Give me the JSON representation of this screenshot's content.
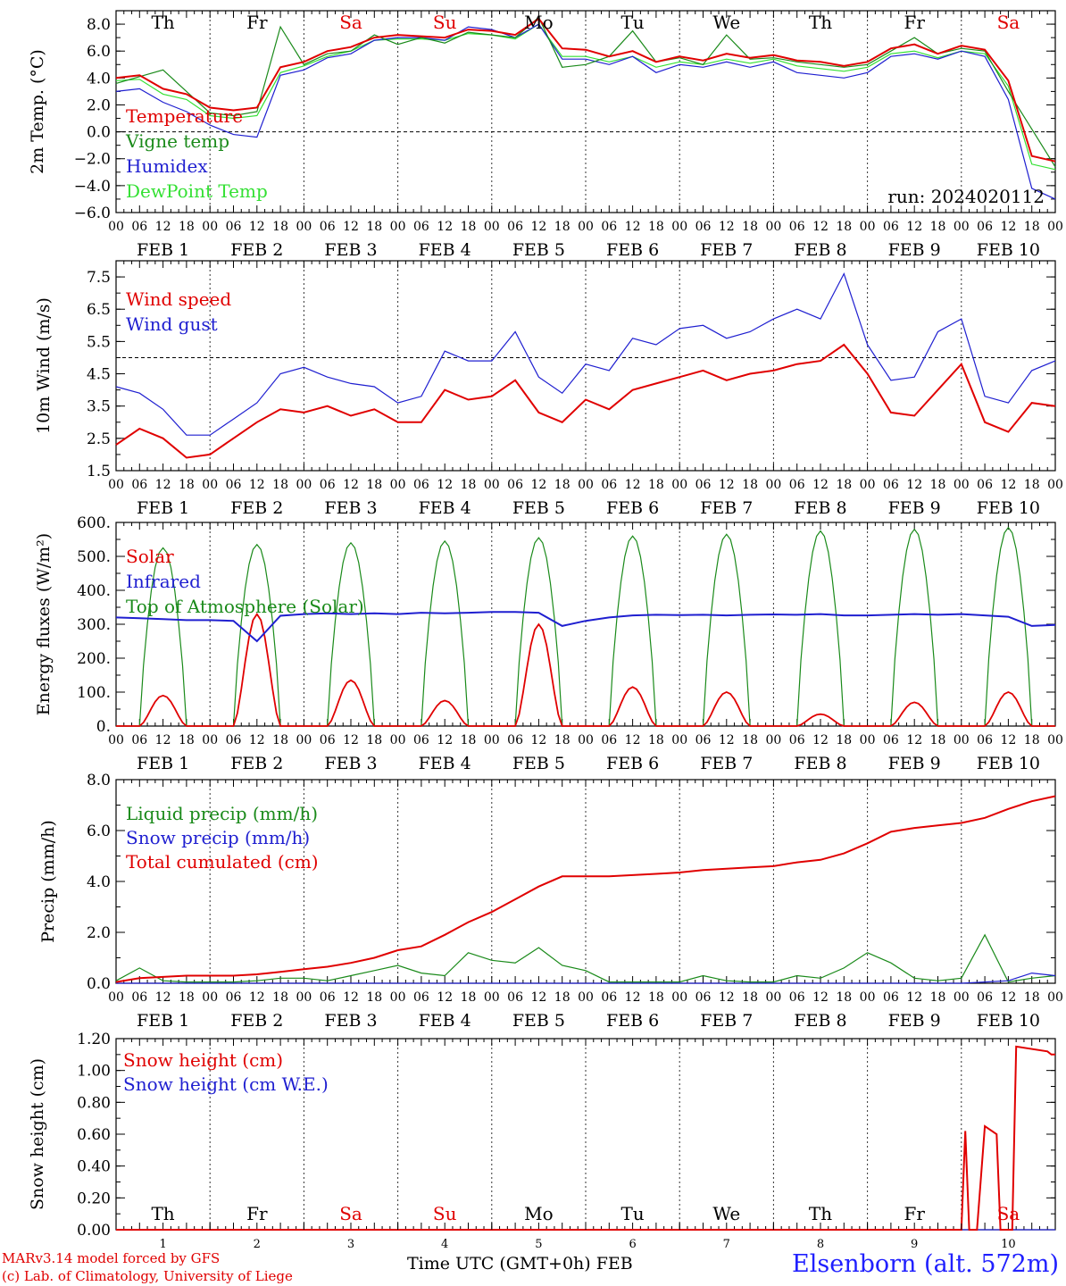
{
  "chart_data": [
    {
      "type": "line",
      "id": "temp",
      "ylabel": "2m Temp. (°C)",
      "ylim": [
        -6,
        9
      ],
      "yticks": [
        "−6.0",
        "−4.0",
        "−2.0",
        "0.0",
        "2.0",
        "4.0",
        "6.0",
        "8.0"
      ],
      "ytick_values": [
        -6,
        -4,
        -2,
        0,
        2,
        4,
        6,
        8
      ],
      "ref_line": 0,
      "run": "run: 2024020112",
      "x_hours": [
        0,
        6,
        12,
        18,
        24,
        30,
        36,
        42,
        48,
        54,
        60,
        66,
        72,
        78,
        84,
        90,
        96,
        102,
        108,
        114,
        120,
        126,
        132,
        138,
        144,
        150,
        156,
        162,
        168,
        174,
        180,
        186,
        192,
        198,
        204,
        210,
        216,
        222,
        228,
        234,
        240
      ],
      "series": [
        {
          "name": "Temperature",
          "color": "#e00000",
          "values": [
            4.0,
            4.2,
            3.2,
            2.8,
            1.8,
            1.6,
            1.8,
            4.8,
            5.2,
            6.0,
            6.3,
            7.0,
            7.2,
            7.1,
            7.0,
            7.6,
            7.5,
            7.2,
            8.4,
            6.2,
            6.1,
            5.6,
            6.0,
            5.2,
            5.6,
            5.3,
            5.8,
            5.5,
            5.7,
            5.3,
            5.2,
            4.9,
            5.2,
            6.2,
            6.5,
            5.8,
            6.4,
            6.1,
            3.8,
            -1.8,
            -2.2
          ]
        },
        {
          "name": "Vigne temp",
          "color": "#1a8a1a",
          "values": [
            3.6,
            4.1,
            4.6,
            3.0,
            1.4,
            1.2,
            1.5,
            7.8,
            5.0,
            5.8,
            6.0,
            7.2,
            6.5,
            7.0,
            6.6,
            7.4,
            7.2,
            7.0,
            8.5,
            4.8,
            5.0,
            5.6,
            7.5,
            5.2,
            5.5,
            5.0,
            7.2,
            5.4,
            5.5,
            5.2,
            5.0,
            4.8,
            5.0,
            6.0,
            7.0,
            5.8,
            6.2,
            6.0,
            3.0,
            0.2,
            -2.6
          ]
        },
        {
          "name": "Humidex",
          "color": "#1f1fd0",
          "values": [
            3.0,
            3.2,
            2.2,
            1.5,
            0.5,
            -0.2,
            -0.4,
            4.2,
            4.6,
            5.5,
            5.8,
            6.8,
            7.0,
            7.0,
            6.8,
            7.8,
            7.6,
            7.0,
            8.0,
            5.4,
            5.4,
            5.0,
            5.6,
            4.4,
            5.0,
            4.8,
            5.2,
            4.8,
            5.2,
            4.4,
            4.2,
            4.0,
            4.4,
            5.6,
            5.8,
            5.4,
            6.0,
            5.6,
            2.4,
            -4.2,
            -5.0
          ]
        },
        {
          "name": "DewPoint Temp",
          "color": "#33e033",
          "values": [
            3.8,
            3.9,
            2.8,
            2.4,
            1.2,
            1.0,
            1.2,
            4.4,
            4.9,
            5.6,
            6.0,
            6.8,
            6.9,
            6.9,
            6.8,
            7.3,
            7.2,
            6.9,
            8.0,
            5.6,
            5.6,
            5.2,
            5.6,
            4.8,
            5.2,
            5.0,
            5.4,
            5.1,
            5.4,
            4.9,
            4.7,
            4.5,
            4.8,
            5.8,
            6.0,
            5.5,
            6.0,
            5.8,
            3.4,
            -2.4,
            -2.8
          ]
        }
      ]
    },
    {
      "type": "line",
      "id": "wind",
      "ylabel": "10m Wind (m/s)",
      "ylim": [
        1.5,
        8.0
      ],
      "yticks": [
        "1.5",
        "2.5",
        "3.5",
        "4.5",
        "5.5",
        "6.5",
        "7.5"
      ],
      "ytick_values": [
        1.5,
        2.5,
        3.5,
        4.5,
        5.5,
        6.5,
        7.5
      ],
      "ref_line": 5.0,
      "x_hours": [
        0,
        6,
        12,
        18,
        24,
        30,
        36,
        42,
        48,
        54,
        60,
        66,
        72,
        78,
        84,
        90,
        96,
        102,
        108,
        114,
        120,
        126,
        132,
        138,
        144,
        150,
        156,
        162,
        168,
        174,
        180,
        186,
        192,
        198,
        204,
        210,
        216,
        222,
        228,
        234,
        240
      ],
      "series": [
        {
          "name": "Wind speed",
          "color": "#e00000",
          "values": [
            2.3,
            2.8,
            2.5,
            1.9,
            2.0,
            2.5,
            3.0,
            3.4,
            3.3,
            3.5,
            3.2,
            3.4,
            3.0,
            3.0,
            4.0,
            3.7,
            3.8,
            4.3,
            3.3,
            3.0,
            3.7,
            3.4,
            4.0,
            4.2,
            4.4,
            4.6,
            4.3,
            4.5,
            4.6,
            4.8,
            4.9,
            5.4,
            4.5,
            3.3,
            3.2,
            4.0,
            4.8,
            3.0,
            2.7,
            3.6,
            3.5
          ]
        },
        {
          "name": "Wind gust",
          "color": "#1f1fd0",
          "values": [
            4.1,
            3.9,
            3.4,
            2.6,
            2.6,
            3.1,
            3.6,
            4.5,
            4.7,
            4.4,
            4.2,
            4.1,
            3.6,
            3.8,
            5.2,
            4.9,
            4.9,
            5.8,
            4.4,
            3.9,
            4.8,
            4.6,
            5.6,
            5.4,
            5.9,
            6.0,
            5.6,
            5.8,
            6.2,
            6.5,
            6.2,
            7.6,
            5.4,
            4.3,
            4.4,
            5.8,
            6.2,
            3.8,
            3.6,
            4.6,
            4.9
          ]
        }
      ]
    },
    {
      "type": "line",
      "id": "energy",
      "ylabel": "Energy fluxes (W/m²)",
      "ylim": [
        0,
        600
      ],
      "yticks": [
        "0.",
        "100.",
        "200.",
        "300.",
        "400.",
        "500.",
        "600."
      ],
      "ytick_values": [
        0,
        100,
        200,
        300,
        400,
        500,
        600
      ],
      "x_hours": [
        0,
        6,
        12,
        18,
        24,
        30,
        36,
        42,
        48,
        54,
        60,
        66,
        72,
        78,
        84,
        90,
        96,
        102,
        108,
        114,
        120,
        126,
        132,
        138,
        144,
        150,
        156,
        162,
        168,
        174,
        180,
        186,
        192,
        198,
        204,
        210,
        216,
        222,
        228,
        234,
        240
      ],
      "solar_peaks": [
        90,
        330,
        135,
        75,
        300,
        115,
        100,
        35,
        70,
        100
      ],
      "toa_peaks": [
        525,
        535,
        540,
        545,
        555,
        560,
        565,
        575,
        580,
        585
      ],
      "series": [
        {
          "name": "Solar",
          "color": "#e00000"
        },
        {
          "name": "Infrared",
          "color": "#1f1fd0",
          "values": [
            320,
            318,
            315,
            312,
            312,
            310,
            250,
            325,
            330,
            332,
            330,
            332,
            330,
            334,
            332,
            334,
            336,
            336,
            334,
            295,
            310,
            320,
            326,
            328,
            327,
            328,
            326,
            328,
            329,
            328,
            330,
            326,
            326,
            328,
            330,
            328,
            330,
            326,
            322,
            295,
            298
          ]
        },
        {
          "name": "Top of Atmosphere (Solar)",
          "color": "#1a8a1a"
        }
      ]
    },
    {
      "type": "line",
      "id": "precip",
      "ylabel": "Precip (mm/h)",
      "ylim": [
        0,
        8
      ],
      "yticks": [
        "0.0",
        "2.0",
        "4.0",
        "6.0",
        "8.0"
      ],
      "ytick_values": [
        0,
        2,
        4,
        6,
        8
      ],
      "x_hours": [
        0,
        6,
        12,
        18,
        24,
        30,
        36,
        42,
        48,
        54,
        60,
        66,
        72,
        78,
        84,
        90,
        96,
        102,
        108,
        114,
        120,
        126,
        132,
        138,
        144,
        150,
        156,
        162,
        168,
        174,
        180,
        186,
        192,
        198,
        204,
        210,
        216,
        222,
        228,
        234,
        240
      ],
      "series": [
        {
          "name": "Liquid precip (mm/h)",
          "color": "#1a8a1a",
          "values": [
            0.1,
            0.6,
            0.1,
            0.05,
            0.05,
            0.05,
            0.1,
            0.2,
            0.2,
            0.1,
            0.3,
            0.5,
            0.7,
            0.4,
            0.3,
            1.2,
            0.9,
            0.8,
            1.4,
            0.7,
            0.5,
            0.05,
            0.05,
            0.05,
            0.05,
            0.3,
            0.1,
            0.05,
            0.05,
            0.3,
            0.2,
            0.6,
            1.2,
            0.8,
            0.2,
            0.1,
            0.2,
            1.9,
            0.05,
            0.2,
            0.3
          ]
        },
        {
          "name": "Snow precip (mm/h)",
          "color": "#1f1fd0",
          "values": [
            0,
            0,
            0,
            0,
            0,
            0,
            0,
            0,
            0,
            0,
            0,
            0,
            0,
            0,
            0,
            0,
            0,
            0,
            0,
            0,
            0,
            0,
            0,
            0,
            0,
            0,
            0,
            0,
            0,
            0,
            0,
            0,
            0,
            0,
            0,
            0,
            0,
            0.05,
            0.1,
            0.4,
            0.3
          ]
        },
        {
          "name": "Total cumulated (cm)",
          "color": "#e00000",
          "values": [
            0.05,
            0.2,
            0.25,
            0.3,
            0.3,
            0.3,
            0.35,
            0.45,
            0.55,
            0.65,
            0.8,
            1.0,
            1.3,
            1.45,
            1.9,
            2.4,
            2.8,
            3.3,
            3.8,
            4.2,
            4.2,
            4.2,
            4.25,
            4.3,
            4.35,
            4.45,
            4.5,
            4.55,
            4.6,
            4.75,
            4.85,
            5.1,
            5.5,
            5.95,
            6.1,
            6.2,
            6.3,
            6.5,
            6.85,
            7.15,
            7.35
          ]
        }
      ]
    },
    {
      "type": "line",
      "id": "snow",
      "ylabel": "Snow height (cm)",
      "ylim": [
        0,
        1.2
      ],
      "yticks": [
        "0.00",
        "0.20",
        "0.40",
        "0.60",
        "0.80",
        "1.00",
        "1.20"
      ],
      "ytick_values": [
        0,
        0.2,
        0.4,
        0.6,
        0.8,
        1.0,
        1.2
      ],
      "x_hours_detail": [
        0,
        200,
        216,
        217,
        218,
        220,
        222,
        225,
        226,
        227,
        229,
        230,
        238,
        239,
        240
      ],
      "series": [
        {
          "name": "Snow height (cm)",
          "color": "#e00000",
          "values": [
            0,
            0,
            0,
            0.62,
            0,
            0,
            0.65,
            0.6,
            0,
            0,
            0,
            1.15,
            1.12,
            1.1,
            1.1
          ]
        },
        {
          "name": "Snow height (cm W.E.)",
          "color": "#1f1fd0",
          "values": [
            0,
            0,
            0,
            0,
            0,
            0,
            0,
            0,
            0,
            0,
            0,
            0,
            0,
            0,
            0
          ]
        }
      ]
    }
  ],
  "days": {
    "top_labels": [
      "Th",
      "Fr",
      "Sa",
      "Su",
      "Mo",
      "Tu",
      "We",
      "Th",
      "Fr",
      "Sa"
    ],
    "top_colors": [
      "#000",
      "#000",
      "#e00000",
      "#e00000",
      "#000",
      "#000",
      "#000",
      "#000",
      "#000",
      "#e00000"
    ],
    "date_labels": [
      "FEB  1",
      "FEB  2",
      "FEB  3",
      "FEB  4",
      "FEB  5",
      "FEB  6",
      "FEB  7",
      "FEB  8",
      "FEB  9",
      "FEB 10"
    ],
    "day_numbers": [
      "1",
      "2",
      "3",
      "4",
      "5",
      "6",
      "7",
      "8",
      "9",
      "10"
    ],
    "hour_ticks": [
      "00",
      "06",
      "12",
      "18"
    ]
  },
  "footer": {
    "model": "MARv3.14 model forced by GFS",
    "lab": "(c) Lab. of Climatology, University of Liege",
    "axis_title": "Time UTC (GMT+0h) FEB",
    "station": "Elsenborn (alt. 572m)"
  }
}
